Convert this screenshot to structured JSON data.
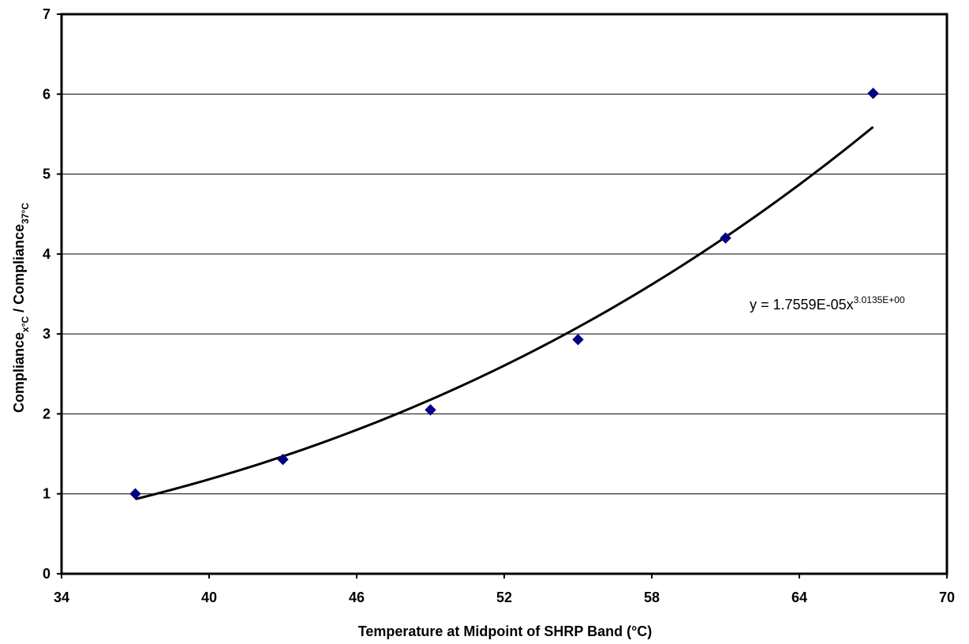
{
  "chart_data": {
    "type": "scatter",
    "xlabel": "Temperature at Midpoint of SHRP Band (°C)",
    "ylabel": {
      "base1": "Compliance",
      "sub1": "x°C",
      "separator": " / ",
      "base2": "Compliance",
      "sub2": "37°C"
    },
    "xlim": [
      34,
      70
    ],
    "ylim": [
      0,
      7
    ],
    "xticks": [
      34,
      40,
      46,
      52,
      58,
      64,
      70
    ],
    "yticks": [
      0,
      1,
      2,
      3,
      4,
      5,
      6,
      7
    ],
    "grid": "horizontal",
    "series": [
      {
        "marker": "diamond",
        "color": "#000080",
        "x": [
          37,
          43,
          49,
          55,
          61,
          67
        ],
        "y": [
          1.0,
          1.43,
          2.05,
          2.93,
          4.2,
          6.01
        ]
      }
    ],
    "trendline": {
      "type": "power",
      "coefficient": 1.7559e-05,
      "exponent": 3.0135,
      "x_range": [
        37,
        67
      ],
      "color": "#000000",
      "label_base": "y = 1.7559E-05x",
      "label_exponent": "3.0135E+00"
    }
  }
}
